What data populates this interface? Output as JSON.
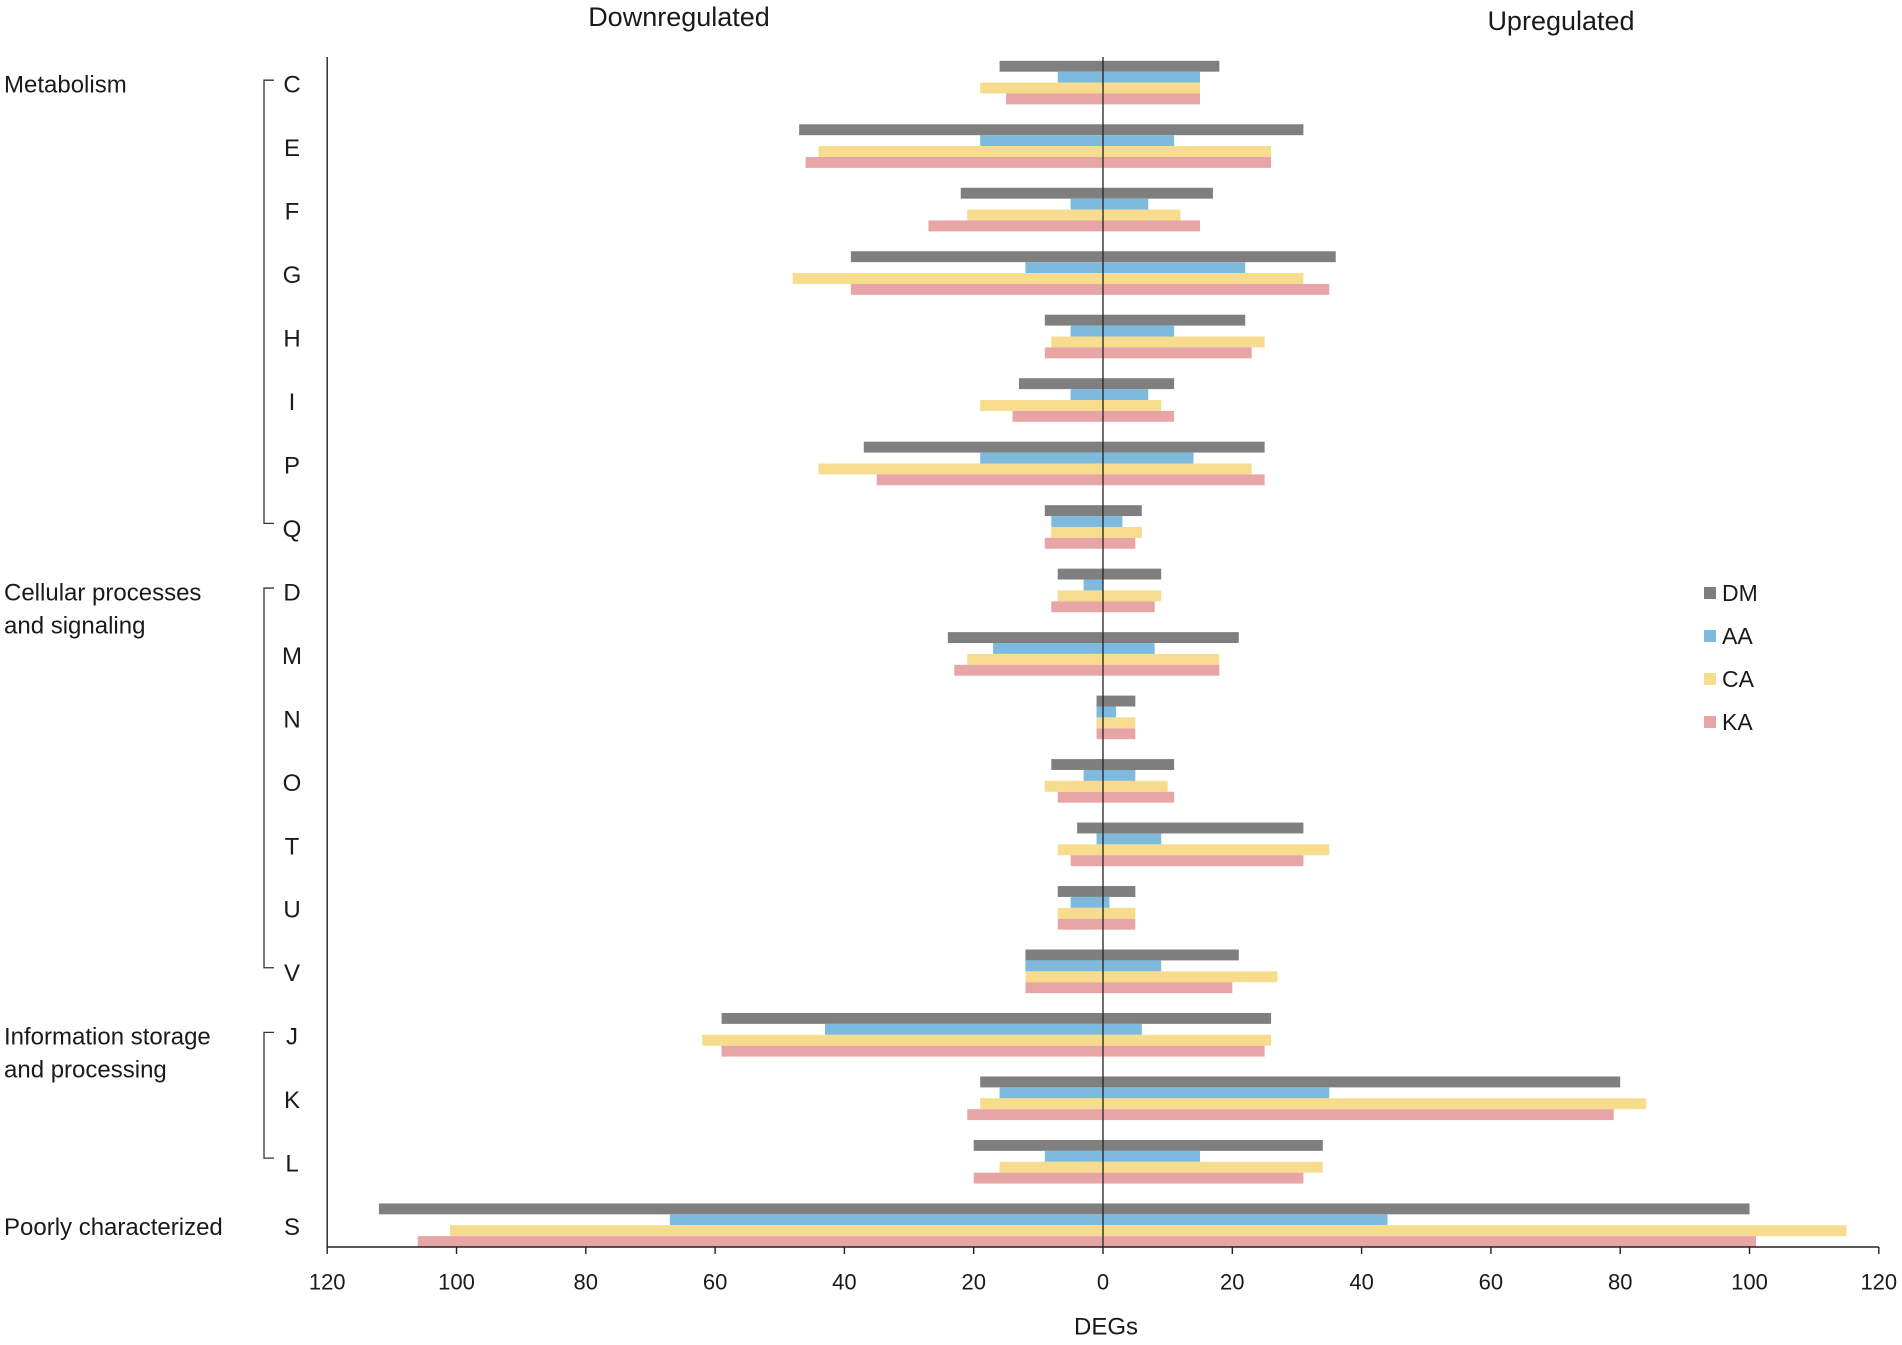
{
  "chart_data": {
    "type": "bar",
    "title_left": "Downregulated",
    "title_right": "Upregulated",
    "xlabel": "DEGs",
    "ylabel": "",
    "xlim": [
      -120,
      120
    ],
    "xticks": [
      -120,
      -100,
      -80,
      -60,
      -40,
      -20,
      0,
      20,
      40,
      60,
      80,
      100,
      120
    ],
    "xtick_labels": [
      "120",
      "100",
      "80",
      "60",
      "40",
      "20",
      "0",
      "20",
      "40",
      "60",
      "80",
      "100",
      "120"
    ],
    "grid": false,
    "legend_position": "right",
    "categories": [
      "C",
      "E",
      "F",
      "G",
      "H",
      "I",
      "P",
      "Q",
      "D",
      "M",
      "N",
      "O",
      "T",
      "U",
      "V",
      "J",
      "K",
      "L",
      "S"
    ],
    "groups": [
      {
        "label_lines": [
          "Metabolism"
        ],
        "size": 8
      },
      {
        "label_lines": [
          "Cellular processes",
          "and signaling"
        ],
        "size": 7
      },
      {
        "label_lines": [
          "Information storage",
          "and processing"
        ],
        "size": 3
      },
      {
        "label_lines": [
          "Poorly characterized"
        ],
        "size": 1
      }
    ],
    "series": [
      {
        "name": "DM",
        "color": "#7f7f7f",
        "downregulated": [
          16,
          47,
          22,
          39,
          9,
          13,
          37,
          9,
          7,
          24,
          1,
          8,
          4,
          7,
          12,
          59,
          19,
          20,
          112
        ],
        "upregulated": [
          18,
          31,
          17,
          36,
          22,
          11,
          25,
          6,
          9,
          21,
          5,
          11,
          31,
          5,
          21,
          26,
          80,
          34,
          100
        ]
      },
      {
        "name": "AA",
        "color": "#7dbade",
        "downregulated": [
          7,
          19,
          5,
          12,
          5,
          5,
          19,
          8,
          3,
          17,
          1,
          3,
          1,
          5,
          12,
          43,
          16,
          9,
          67
        ],
        "upregulated": [
          15,
          11,
          7,
          22,
          11,
          7,
          14,
          3,
          0,
          8,
          2,
          5,
          9,
          1,
          9,
          6,
          35,
          15,
          44
        ]
      },
      {
        "name": "CA",
        "color": "#f6dc8c",
        "downregulated": [
          19,
          44,
          21,
          48,
          8,
          19,
          44,
          8,
          7,
          21,
          1,
          9,
          7,
          7,
          12,
          62,
          19,
          16,
          101
        ],
        "upregulated": [
          15,
          26,
          12,
          31,
          25,
          9,
          23,
          6,
          9,
          18,
          5,
          10,
          35,
          5,
          27,
          26,
          84,
          34,
          115
        ]
      },
      {
        "name": "KA",
        "color": "#e8a5a5",
        "downregulated": [
          15,
          46,
          27,
          39,
          9,
          14,
          35,
          9,
          8,
          23,
          1,
          7,
          5,
          7,
          12,
          59,
          21,
          20,
          106
        ],
        "upregulated": [
          15,
          26,
          15,
          35,
          23,
          11,
          25,
          5,
          8,
          18,
          5,
          11,
          31,
          5,
          20,
          25,
          79,
          31,
          101
        ]
      }
    ]
  }
}
